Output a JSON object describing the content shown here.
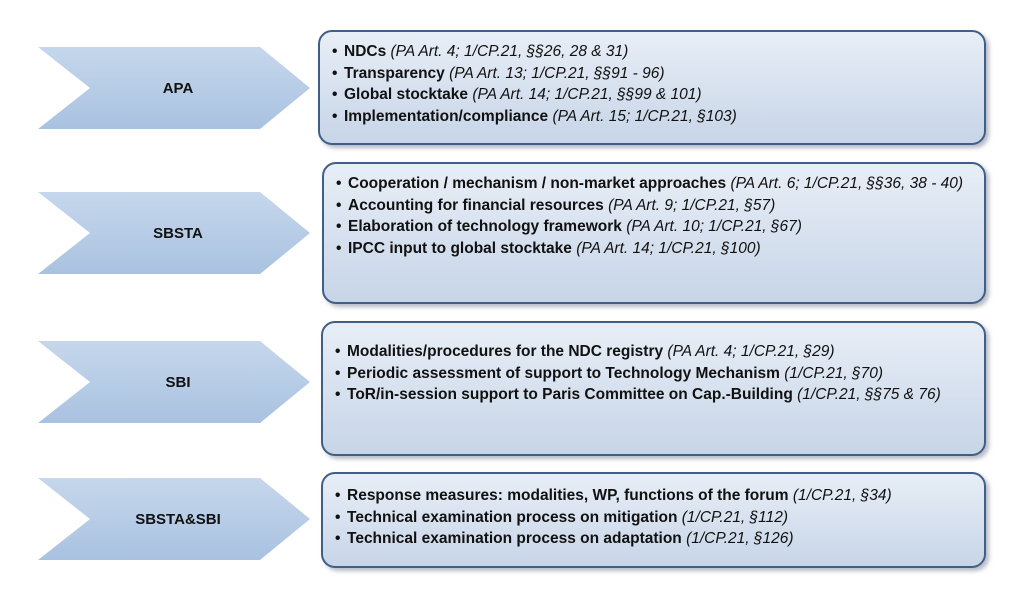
{
  "rows": [
    {
      "label": "APA",
      "items": [
        {
          "title": "NDCs",
          "ref": "(PA Art. 4; 1/CP.21, §§26, 28 & 31)"
        },
        {
          "title": "Transparency",
          "ref": "(PA Art. 13; 1/CP.21, §§91 - 96)"
        },
        {
          "title": "Global stocktake",
          "ref": "(PA Art. 14; 1/CP.21, §§99 & 101)"
        },
        {
          "title": "Implementation/compliance",
          "ref": "(PA Art. 15; 1/CP.21, §103)"
        }
      ]
    },
    {
      "label": "SBSTA",
      "items": [
        {
          "title": "Cooperation / mechanism / non-market approaches",
          "ref": "(PA Art. 6; 1/CP.21, §§36, 38 - 40)"
        },
        {
          "title": "Accounting for financial resources",
          "ref": "(PA Art. 9; 1/CP.21, §57)"
        },
        {
          "title": "Elaboration of technology framework",
          "ref": "(PA Art. 10; 1/CP.21, §67)"
        },
        {
          "title": "IPCC input to global stocktake",
          "ref": "(PA Art. 14; 1/CP.21, §100)"
        }
      ]
    },
    {
      "label": "SBI",
      "items": [
        {
          "title": "Modalities/procedures for the NDC registry",
          "ref": "(PA Art. 4; 1/CP.21, §29)"
        },
        {
          "title": "Periodic assessment of support to Technology Mechanism",
          "ref": "(1/CP.21, §70)"
        },
        {
          "title": "ToR/in-session support to Paris Committee on Cap.-Building",
          "ref": "(1/CP.21, §§75 & 76)"
        }
      ]
    },
    {
      "label": "SBSTA&SBI",
      "items": [
        {
          "title": "Response measures: modalities, WP, functions of the forum",
          "ref": "(1/CP.21, §34)"
        },
        {
          "title": "Technical examination process on mitigation",
          "ref": "(1/CP.21, §112)"
        },
        {
          "title": "Technical examination process on adaptation",
          "ref": "(1/CP.21, §126)"
        }
      ]
    }
  ]
}
